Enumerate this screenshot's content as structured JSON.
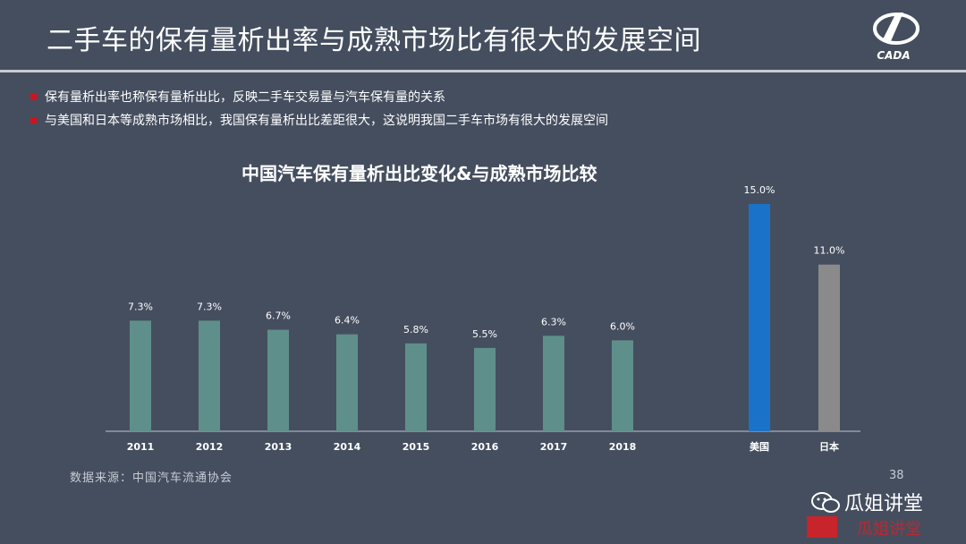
{
  "header": {
    "title": "二手车的保有量析出率与成熟市场比有很大的发展空间",
    "logo_text": "CADA"
  },
  "bullets": [
    "保有量析出率也称保有量析出比，反映二手车交易量与汽车保有量的关系",
    "与美国和日本等成熟市场相比，我国保有量析出比差距很大，这说明我国二手车市场有很大的发展空间"
  ],
  "colors": {
    "background": "#454e5f",
    "china_bar": "#5f8f8b",
    "us_bar": "#1a73c8",
    "japan_bar": "#8a8a8a",
    "bullet_mark": "#d0121b"
  },
  "chart_data": {
    "type": "bar",
    "title": "中国汽车保有量析出比变化&与成熟市场比较",
    "categories": [
      "2011",
      "2012",
      "2013",
      "2014",
      "2015",
      "2016",
      "2017",
      "2018",
      "美国",
      "日本"
    ],
    "values": [
      7.3,
      7.3,
      6.7,
      6.4,
      5.8,
      5.5,
      6.3,
      6.0,
      15.0,
      11.0
    ],
    "labels": [
      "7.3%",
      "7.3%",
      "6.7%",
      "6.4%",
      "5.8%",
      "5.5%",
      "6.3%",
      "6.0%",
      "15.0%",
      "11.0%"
    ],
    "xlabel": "",
    "ylabel": "",
    "ylim": [
      0,
      15
    ],
    "grid": false,
    "legend": "none"
  },
  "footer": {
    "source": "数据来源：中国汽车流通协会",
    "page": "38"
  },
  "watermark": {
    "name": "瓜姐讲堂",
    "seal_text": "瓜姐讲堂"
  }
}
